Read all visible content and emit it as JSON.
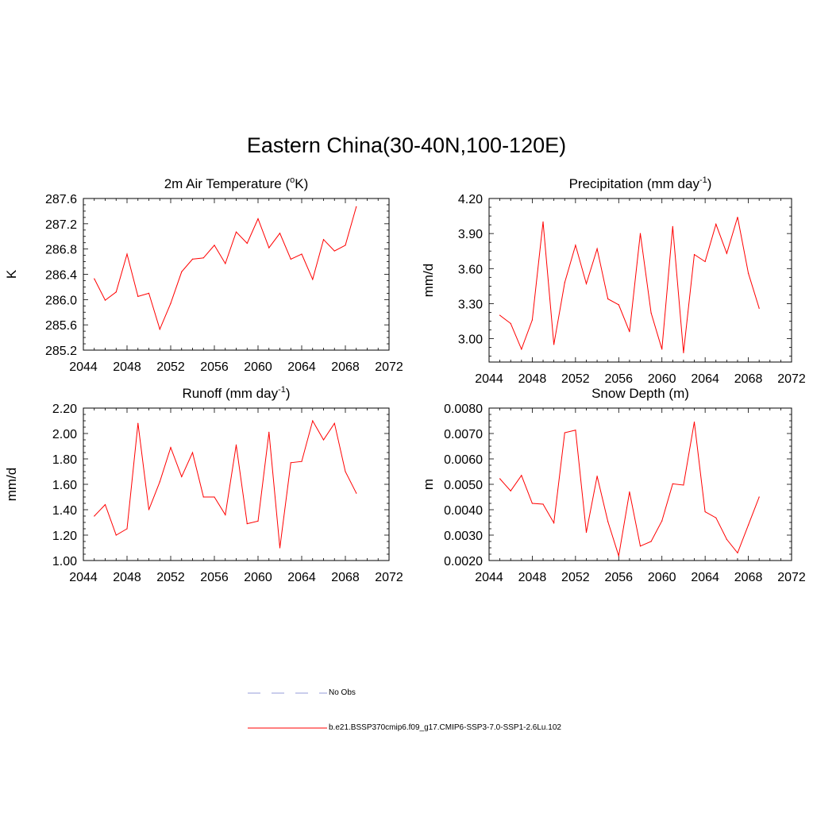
{
  "title": "Eastern China(30-40N,100-120E)",
  "legend": {
    "entries": [
      {
        "label": "No Obs",
        "color": "#aab0e0",
        "style": "dashed"
      },
      {
        "label": "b.e21.BSSP370cmip6.f09_g17.CMIP6-SSP3-7.0-SSP1-2.6Lu.102",
        "color": "#ff0000",
        "style": "solid"
      }
    ]
  },
  "chart_data": [
    {
      "type": "line",
      "title_main": "2m Air Temperature (",
      "title_sup": "o",
      "title_end": "K)",
      "ylabel": "K",
      "xlim": [
        2044,
        2072
      ],
      "ylim": [
        285.2,
        287.6
      ],
      "xticks": [
        "2044",
        "2048",
        "2052",
        "2056",
        "2060",
        "2064",
        "2068",
        "2072"
      ],
      "yticks": [
        "285.2",
        "285.6",
        "286.0",
        "286.4",
        "286.8",
        "287.2",
        "287.6"
      ],
      "series": [
        {
          "color": "#ff0000",
          "x": [
            2045,
            2046,
            2047,
            2048,
            2049,
            2050,
            2051,
            2052,
            2053,
            2054,
            2055,
            2056,
            2057,
            2058,
            2059,
            2060,
            2061,
            2062,
            2063,
            2064,
            2065,
            2066,
            2067,
            2068,
            2069
          ],
          "y": [
            286.33,
            285.99,
            286.12,
            286.72,
            286.05,
            286.1,
            285.53,
            285.94,
            286.44,
            286.64,
            286.66,
            286.86,
            286.57,
            287.07,
            286.89,
            287.28,
            286.82,
            287.05,
            286.64,
            286.72,
            286.32,
            286.95,
            286.77,
            286.86,
            287.47
          ]
        }
      ]
    },
    {
      "type": "line",
      "title_main": "Precipitation (mm day",
      "title_sup": "-1",
      "title_end": ")",
      "ylabel": "mm/d",
      "xlim": [
        2044,
        2072
      ],
      "ylim": [
        2.8,
        4.2
      ],
      "xticks": [
        "2044",
        "2048",
        "2052",
        "2056",
        "2060",
        "2064",
        "2068",
        "2072"
      ],
      "yticks": [
        "3.00",
        "3.30",
        "3.60",
        "3.90",
        "4.20"
      ],
      "series": [
        {
          "color": "#ff0000",
          "x": [
            2045,
            2046,
            2047,
            2048,
            2049,
            2050,
            2051,
            2052,
            2053,
            2054,
            2055,
            2056,
            2057,
            2058,
            2059,
            2060,
            2061,
            2062,
            2063,
            2064,
            2065,
            2066,
            2067,
            2068,
            2069
          ],
          "y": [
            3.2,
            3.13,
            2.91,
            3.16,
            4.0,
            2.95,
            3.48,
            3.8,
            3.47,
            3.77,
            3.34,
            3.29,
            3.06,
            3.9,
            3.22,
            2.91,
            3.96,
            2.88,
            3.72,
            3.66,
            3.98,
            3.73,
            4.04,
            3.56,
            3.26
          ]
        }
      ]
    },
    {
      "type": "line",
      "title_main": "Runoff (mm day",
      "title_sup": "-1",
      "title_end": ")",
      "ylabel": "mm/d",
      "xlim": [
        2044,
        2072
      ],
      "ylim": [
        1.0,
        2.2
      ],
      "xticks": [
        "2044",
        "2048",
        "2052",
        "2056",
        "2060",
        "2064",
        "2068",
        "2072"
      ],
      "yticks": [
        "1.00",
        "1.20",
        "1.40",
        "1.60",
        "1.80",
        "2.00",
        "2.20"
      ],
      "series": [
        {
          "color": "#ff0000",
          "x": [
            2045,
            2046,
            2047,
            2048,
            2049,
            2050,
            2051,
            2052,
            2053,
            2054,
            2055,
            2056,
            2057,
            2058,
            2059,
            2060,
            2061,
            2062,
            2063,
            2064,
            2065,
            2066,
            2067,
            2068,
            2069
          ],
          "y": [
            1.35,
            1.44,
            1.2,
            1.25,
            2.08,
            1.4,
            1.62,
            1.89,
            1.66,
            1.85,
            1.5,
            1.5,
            1.36,
            1.91,
            1.29,
            1.31,
            2.01,
            1.1,
            1.77,
            1.78,
            2.1,
            1.95,
            2.08,
            1.7,
            1.53
          ]
        }
      ]
    },
    {
      "type": "line",
      "title_main": "Snow Depth (m)",
      "title_sup": "",
      "title_end": "",
      "ylabel": "m",
      "xlim": [
        2044,
        2072
      ],
      "ylim": [
        0.002,
        0.008
      ],
      "xticks": [
        "2044",
        "2048",
        "2052",
        "2056",
        "2060",
        "2064",
        "2068",
        "2072"
      ],
      "yticks": [
        "0.0020",
        "0.0030",
        "0.0040",
        "0.0050",
        "0.0060",
        "0.0070",
        "0.0080"
      ],
      "series": [
        {
          "color": "#ff0000",
          "x": [
            2045,
            2046,
            2047,
            2048,
            2049,
            2050,
            2051,
            2052,
            2053,
            2054,
            2055,
            2056,
            2057,
            2058,
            2059,
            2060,
            2061,
            2062,
            2063,
            2064,
            2065,
            2066,
            2067,
            2068,
            2069
          ],
          "y": [
            0.00522,
            0.00474,
            0.00535,
            0.00425,
            0.00422,
            0.00348,
            0.00703,
            0.00713,
            0.00311,
            0.00532,
            0.00353,
            0.00218,
            0.0047,
            0.00257,
            0.00275,
            0.00356,
            0.00502,
            0.00497,
            0.00745,
            0.00392,
            0.00368,
            0.00283,
            0.0023,
            0.0034,
            0.0045
          ]
        }
      ]
    }
  ]
}
